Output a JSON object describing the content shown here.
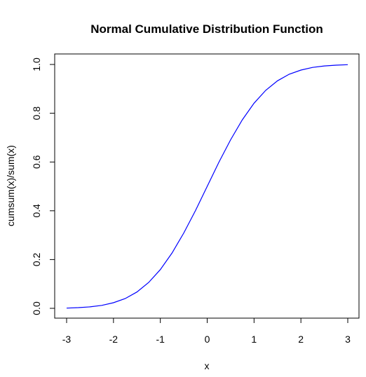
{
  "chart_data": {
    "type": "line",
    "title": "Normal Cumulative Distribution Function",
    "xlabel": "x",
    "ylabel": "cumsum(x)/sum(x)",
    "xlim": [
      -3,
      3
    ],
    "ylim": [
      0,
      1
    ],
    "x_ticks": [
      "-3",
      "-2",
      "-1",
      "0",
      "1",
      "2",
      "3"
    ],
    "y_ticks": [
      "0.0",
      "0.2",
      "0.4",
      "0.6",
      "0.8",
      "1.0"
    ],
    "grid": false,
    "line_color": "#0000ff",
    "series": [
      {
        "x": [
          -3.0,
          -2.75,
          -2.5,
          -2.25,
          -2.0,
          -1.75,
          -1.5,
          -1.25,
          -1.0,
          -0.75,
          -0.5,
          -0.25,
          0.0,
          0.25,
          0.5,
          0.75,
          1.0,
          1.25,
          1.5,
          1.75,
          2.0,
          2.25,
          2.5,
          2.75,
          3.0
        ],
        "values": [
          0.001,
          0.003,
          0.006,
          0.012,
          0.023,
          0.04,
          0.067,
          0.106,
          0.159,
          0.227,
          0.309,
          0.401,
          0.5,
          0.599,
          0.691,
          0.773,
          0.841,
          0.894,
          0.933,
          0.96,
          0.977,
          0.988,
          0.994,
          0.997,
          0.999
        ]
      }
    ]
  }
}
